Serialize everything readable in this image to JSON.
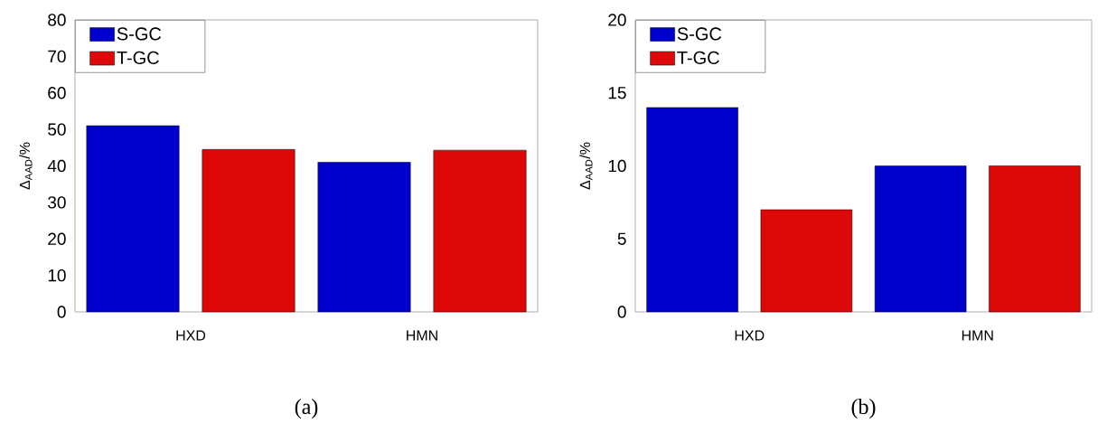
{
  "chart_data": [
    {
      "type": "bar",
      "categories": [
        "HXD",
        "HMN"
      ],
      "series": [
        {
          "name": "S-GC",
          "color": "#0000cc",
          "values": [
            51,
            41
          ]
        },
        {
          "name": "T-GC",
          "color": "#dd0909",
          "values": [
            44.5,
            44.3
          ]
        }
      ],
      "ylabel": "Δ$_{AAD}$/%",
      "ylim": [
        0,
        80
      ],
      "yticks": [
        0,
        10,
        20,
        30,
        40,
        50,
        60,
        70,
        80
      ],
      "legend": "top left",
      "annotations": [
        "(a)"
      ]
    },
    {
      "type": "bar",
      "categories": [
        "HXD",
        "HMN"
      ],
      "series": [
        {
          "name": "S-GC",
          "color": "#0000cc",
          "values": [
            14,
            10
          ]
        },
        {
          "name": "T-GC",
          "color": "#dd0909",
          "values": [
            7,
            10
          ]
        }
      ],
      "ylabel": "Δ$_{AAD}$/%",
      "ylim": [
        0,
        20
      ],
      "yticks": [
        0,
        5,
        10,
        15,
        20
      ],
      "legend": "top left",
      "annotations": [
        "(b)"
      ]
    }
  ]
}
